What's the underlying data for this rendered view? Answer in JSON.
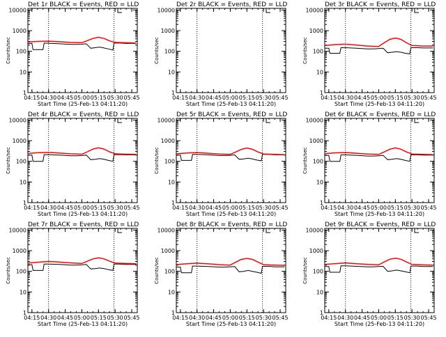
{
  "figure": {
    "xlabel": "Start Time (25-Feb-13 04:11:20)",
    "ylabel": "Counts/sec",
    "colors": {
      "events": "#000000",
      "lld": "#ff0000",
      "axis": "#000000"
    }
  },
  "chart_data": [
    {
      "type": "line",
      "title": "Det 1r BLACK = Events, RED = LLD",
      "xlabel": "Start Time (25-Feb-13 04:11:20)",
      "ylabel": "Counts/sec",
      "x_ticks": [
        "04:15",
        "04:30",
        "04:45",
        "05:00",
        "05:15",
        "05:30",
        "05:45"
      ],
      "y_ticks": [
        "1",
        "10",
        "100",
        "1000",
        "10000"
      ],
      "y_scale": "log",
      "ylim": [
        1,
        12000
      ],
      "xlim": [
        "04:11:20",
        "05:50:00"
      ],
      "dotted_vlines": [
        "04:30",
        "05:29"
      ],
      "series": [
        {
          "role": "events",
          "color": "#000000",
          "x": [
            "04:11",
            "04:15",
            "04:16",
            "04:25",
            "04:26",
            "04:30",
            "04:40",
            "04:50",
            "04:55",
            "05:00",
            "05:04",
            "05:08",
            "05:12",
            "05:16",
            "05:20",
            "05:24",
            "05:28",
            "05:29",
            "05:35",
            "05:40",
            "05:45",
            "05:49"
          ],
          "y": [
            240,
            240,
            120,
            120,
            250,
            245,
            230,
            215,
            215,
            220,
            230,
            140,
            150,
            160,
            145,
            130,
            115,
            250,
            250,
            240,
            240,
            240
          ]
        },
        {
          "role": "lld",
          "color": "#ff0000",
          "x": [
            "04:11",
            "04:20",
            "04:30",
            "04:40",
            "04:50",
            "05:00",
            "05:05",
            "05:10",
            "05:15",
            "05:20",
            "05:25",
            "05:30",
            "05:40",
            "05:49"
          ],
          "y": [
            280,
            300,
            310,
            290,
            270,
            260,
            330,
            420,
            480,
            420,
            320,
            270,
            260,
            250
          ]
        }
      ]
    },
    {
      "type": "line",
      "title": "Det 2r BLACK = Events, RED = LLD",
      "xlabel": "Start Time (25-Feb-13 04:11:20)",
      "ylabel": "Counts/sec",
      "x_ticks": [
        "04:15",
        "04:30",
        "04:45",
        "05:00",
        "05:15",
        "05:30",
        "05:45"
      ],
      "y_ticks": [
        "1",
        "10",
        "100",
        "1000",
        "10000"
      ],
      "y_scale": "log",
      "ylim": [
        1,
        12000
      ],
      "xlim": [
        "04:11:20",
        "05:50:00"
      ],
      "dotted_vlines": [
        "04:30",
        "05:29"
      ],
      "series": []
    },
    {
      "type": "line",
      "title": "Det 3r BLACK = Events, RED = LLD",
      "xlabel": "Start Time (25-Feb-13 04:11:20)",
      "ylabel": "Counts/sec",
      "x_ticks": [
        "04:15",
        "04:30",
        "04:45",
        "05:00",
        "05:15",
        "05:30",
        "05:45"
      ],
      "y_ticks": [
        "1",
        "10",
        "100",
        "1000",
        "10000"
      ],
      "y_scale": "log",
      "ylim": [
        1,
        12000
      ],
      "xlim": [
        "04:11:20",
        "05:50:00"
      ],
      "dotted_vlines": [
        "04:30",
        "05:29"
      ],
      "series": [
        {
          "role": "events",
          "color": "#000000",
          "x": [
            "04:11",
            "04:15",
            "04:16",
            "04:25",
            "04:26",
            "04:30",
            "04:40",
            "04:50",
            "04:55",
            "05:00",
            "05:04",
            "05:08",
            "05:12",
            "05:16",
            "05:20",
            "05:24",
            "05:28",
            "05:29",
            "05:35",
            "05:40",
            "05:45",
            "05:49"
          ],
          "y": [
            140,
            140,
            80,
            80,
            150,
            150,
            140,
            130,
            130,
            135,
            140,
            85,
            90,
            95,
            90,
            80,
            75,
            150,
            150,
            145,
            145,
            145
          ]
        },
        {
          "role": "lld",
          "color": "#ff0000",
          "x": [
            "04:11",
            "04:20",
            "04:30",
            "04:40",
            "04:50",
            "05:00",
            "05:05",
            "05:10",
            "05:15",
            "05:20",
            "05:25",
            "05:30",
            "05:40",
            "05:49"
          ],
          "y": [
            190,
            210,
            220,
            200,
            180,
            170,
            260,
            380,
            440,
            380,
            260,
            190,
            180,
            180
          ]
        }
      ]
    },
    {
      "type": "line",
      "title": "Det 4r BLACK = Events, RED = LLD",
      "xlabel": "Start Time (25-Feb-13 04:11:20)",
      "ylabel": "Counts/sec",
      "x_ticks": [
        "04:15",
        "04:30",
        "04:45",
        "05:00",
        "05:15",
        "05:30",
        "05:45"
      ],
      "y_ticks": [
        "1",
        "10",
        "100",
        "1000",
        "10000"
      ],
      "y_scale": "log",
      "ylim": [
        1,
        12000
      ],
      "xlim": [
        "04:11:20",
        "05:50:00"
      ],
      "dotted_vlines": [
        "04:30",
        "05:29"
      ],
      "series": [
        {
          "role": "events",
          "color": "#000000",
          "x": [
            "04:11",
            "04:15",
            "04:16",
            "04:25",
            "04:26",
            "04:30",
            "04:40",
            "04:50",
            "04:55",
            "05:00",
            "05:04",
            "05:08",
            "05:12",
            "05:16",
            "05:20",
            "05:24",
            "05:28",
            "05:29",
            "05:35",
            "05:40",
            "05:45",
            "05:49"
          ],
          "y": [
            200,
            200,
            100,
            100,
            210,
            210,
            200,
            185,
            185,
            190,
            200,
            120,
            125,
            135,
            125,
            110,
            100,
            210,
            210,
            205,
            205,
            205
          ]
        },
        {
          "role": "lld",
          "color": "#ff0000",
          "x": [
            "04:11",
            "04:20",
            "04:30",
            "04:40",
            "04:50",
            "05:00",
            "05:05",
            "05:10",
            "05:15",
            "05:20",
            "05:25",
            "05:30",
            "05:40",
            "05:49"
          ],
          "y": [
            240,
            260,
            270,
            250,
            230,
            220,
            290,
            390,
            450,
            390,
            290,
            230,
            220,
            215
          ]
        }
      ]
    },
    {
      "type": "line",
      "title": "Det 5r BLACK = Events, RED = LLD",
      "xlabel": "Start Time (25-Feb-13 04:11:20)",
      "ylabel": "Counts/sec",
      "x_ticks": [
        "04:15",
        "04:30",
        "04:45",
        "05:00",
        "05:15",
        "05:30",
        "05:45"
      ],
      "y_ticks": [
        "1",
        "10",
        "100",
        "1000",
        "10000"
      ],
      "y_scale": "log",
      "ylim": [
        1,
        12000
      ],
      "xlim": [
        "04:11:20",
        "05:50:00"
      ],
      "dotted_vlines": [
        "04:30",
        "05:29"
      ],
      "series": [
        {
          "role": "events",
          "color": "#000000",
          "x": [
            "04:11",
            "04:15",
            "04:16",
            "04:25",
            "04:26",
            "04:30",
            "04:40",
            "04:50",
            "04:55",
            "05:00",
            "05:04",
            "05:08",
            "05:12",
            "05:16",
            "05:20",
            "05:24",
            "05:28",
            "05:29",
            "05:35",
            "05:40",
            "05:45",
            "05:49"
          ],
          "y": [
            200,
            200,
            110,
            110,
            215,
            215,
            205,
            190,
            190,
            195,
            205,
            125,
            130,
            140,
            130,
            115,
            105,
            215,
            215,
            205,
            205,
            205
          ]
        },
        {
          "role": "lld",
          "color": "#ff0000",
          "x": [
            "04:11",
            "04:20",
            "04:30",
            "04:40",
            "04:50",
            "05:00",
            "05:05",
            "05:10",
            "05:15",
            "05:20",
            "05:25",
            "05:30",
            "05:40",
            "05:49"
          ],
          "y": [
            230,
            250,
            265,
            245,
            225,
            215,
            285,
            380,
            440,
            380,
            285,
            225,
            215,
            210
          ]
        }
      ]
    },
    {
      "type": "line",
      "title": "Det 6r BLACK = Events, RED = LLD",
      "xlabel": "Start Time (25-Feb-13 04:11:20)",
      "ylabel": "Counts/sec",
      "x_ticks": [
        "04:15",
        "04:30",
        "04:45",
        "05:00",
        "05:15",
        "05:30",
        "05:45"
      ],
      "y_ticks": [
        "1",
        "10",
        "100",
        "1000",
        "10000"
      ],
      "y_scale": "log",
      "ylim": [
        1,
        12000
      ],
      "xlim": [
        "04:11:20",
        "05:50:00"
      ],
      "dotted_vlines": [
        "04:30",
        "05:29"
      ],
      "series": [
        {
          "role": "events",
          "color": "#000000",
          "x": [
            "04:11",
            "04:15",
            "04:16",
            "04:25",
            "04:26",
            "04:30",
            "04:40",
            "04:50",
            "04:55",
            "05:00",
            "05:04",
            "05:08",
            "05:12",
            "05:16",
            "05:20",
            "05:24",
            "05:28",
            "05:29",
            "05:35",
            "05:40",
            "05:45",
            "05:49"
          ],
          "y": [
            195,
            195,
            100,
            100,
            205,
            205,
            195,
            180,
            180,
            185,
            195,
            120,
            125,
            135,
            125,
            110,
            100,
            205,
            205,
            200,
            200,
            200
          ]
        },
        {
          "role": "lld",
          "color": "#ff0000",
          "x": [
            "04:11",
            "04:20",
            "04:30",
            "04:40",
            "04:50",
            "05:00",
            "05:05",
            "05:10",
            "05:15",
            "05:20",
            "05:25",
            "05:30",
            "05:40",
            "05:49"
          ],
          "y": [
            235,
            255,
            265,
            245,
            225,
            215,
            285,
            385,
            445,
            385,
            285,
            225,
            215,
            210
          ]
        }
      ]
    },
    {
      "type": "line",
      "title": "Det 7r BLACK = Events, RED = LLD",
      "xlabel": "Start Time (25-Feb-13 04:11:20)",
      "ylabel": "Counts/sec",
      "x_ticks": [
        "04:15",
        "04:30",
        "04:45",
        "05:00",
        "05:15",
        "05:30",
        "05:45"
      ],
      "y_ticks": [
        "1",
        "10",
        "100",
        "1000",
        "10000"
      ],
      "y_scale": "log",
      "ylim": [
        1,
        12000
      ],
      "xlim": [
        "04:11:20",
        "05:50:00"
      ],
      "dotted_vlines": [
        "04:30",
        "05:29"
      ],
      "series": [
        {
          "role": "events",
          "color": "#000000",
          "x": [
            "04:11",
            "04:15",
            "04:16",
            "04:25",
            "04:26",
            "04:30",
            "04:40",
            "04:50",
            "04:55",
            "05:00",
            "05:04",
            "05:08",
            "05:12",
            "05:16",
            "05:20",
            "05:24",
            "05:28",
            "05:29",
            "05:35",
            "05:40",
            "05:45",
            "05:49"
          ],
          "y": [
            210,
            210,
            110,
            110,
            225,
            225,
            215,
            200,
            200,
            205,
            215,
            130,
            135,
            145,
            135,
            120,
            110,
            225,
            225,
            215,
            215,
            215
          ]
        },
        {
          "role": "lld",
          "color": "#ff0000",
          "x": [
            "04:11",
            "04:20",
            "04:30",
            "04:40",
            "04:50",
            "05:00",
            "05:05",
            "05:10",
            "05:15",
            "05:20",
            "05:25",
            "05:30",
            "05:40",
            "05:49"
          ],
          "y": [
            250,
            275,
            300,
            280,
            255,
            240,
            310,
            400,
            450,
            400,
            310,
            250,
            240,
            235
          ]
        }
      ]
    },
    {
      "type": "line",
      "title": "Det 8r BLACK = Events, RED = LLD",
      "xlabel": "Start Time (25-Feb-13 04:11:20)",
      "ylabel": "Counts/sec",
      "x_ticks": [
        "04:15",
        "04:30",
        "04:45",
        "05:00",
        "05:15",
        "05:30",
        "05:45"
      ],
      "y_ticks": [
        "1",
        "10",
        "100",
        "1000",
        "10000"
      ],
      "y_scale": "log",
      "ylim": [
        1,
        12000
      ],
      "xlim": [
        "04:11:20",
        "05:50:00"
      ],
      "dotted_vlines": [
        "04:30",
        "05:29"
      ],
      "series": [
        {
          "role": "events",
          "color": "#000000",
          "x": [
            "04:11",
            "04:15",
            "04:16",
            "04:25",
            "04:26",
            "04:30",
            "04:40",
            "04:50",
            "04:55",
            "05:00",
            "05:04",
            "05:08",
            "05:12",
            "05:16",
            "05:20",
            "05:24",
            "05:28",
            "05:29",
            "05:35",
            "05:40",
            "05:45",
            "05:49"
          ],
          "y": [
            160,
            160,
            85,
            85,
            180,
            180,
            170,
            160,
            160,
            165,
            170,
            95,
            100,
            110,
            100,
            90,
            80,
            175,
            175,
            165,
            165,
            165
          ]
        },
        {
          "role": "lld",
          "color": "#ff0000",
          "x": [
            "04:11",
            "04:20",
            "04:30",
            "04:40",
            "04:50",
            "05:00",
            "05:05",
            "05:10",
            "05:15",
            "05:20",
            "05:25",
            "05:30",
            "05:40",
            "05:49"
          ],
          "y": [
            210,
            230,
            250,
            230,
            210,
            200,
            280,
            380,
            420,
            380,
            280,
            210,
            200,
            195
          ]
        }
      ]
    },
    {
      "type": "line",
      "title": "Det 9r BLACK = Events, RED = LLD",
      "xlabel": "Start Time (25-Feb-13 04:11:20)",
      "ylabel": "Counts/sec",
      "x_ticks": [
        "04:15",
        "04:30",
        "04:45",
        "05:00",
        "05:15",
        "05:30",
        "05:45"
      ],
      "y_ticks": [
        "1",
        "10",
        "100",
        "1000",
        "10000"
      ],
      "y_scale": "log",
      "ylim": [
        1,
        12000
      ],
      "xlim": [
        "04:11:20",
        "05:50:00"
      ],
      "dotted_vlines": [
        "04:30",
        "05:29"
      ],
      "series": [
        {
          "role": "events",
          "color": "#000000",
          "x": [
            "04:11",
            "04:15",
            "04:16",
            "04:25",
            "04:26",
            "04:30",
            "04:40",
            "04:50",
            "04:55",
            "05:00",
            "05:04",
            "05:08",
            "05:12",
            "05:16",
            "05:20",
            "05:24",
            "05:28",
            "05:29",
            "05:35",
            "05:40",
            "05:45",
            "05:49"
          ],
          "y": [
            170,
            170,
            90,
            90,
            185,
            185,
            175,
            165,
            165,
            170,
            175,
            100,
            105,
            115,
            105,
            95,
            85,
            180,
            180,
            170,
            170,
            170
          ]
        },
        {
          "role": "lld",
          "color": "#ff0000",
          "x": [
            "04:11",
            "04:20",
            "04:30",
            "04:40",
            "04:50",
            "05:00",
            "05:05",
            "05:10",
            "05:15",
            "05:20",
            "05:25",
            "05:30",
            "05:40",
            "05:49"
          ],
          "y": [
            215,
            235,
            255,
            235,
            215,
            205,
            285,
            385,
            430,
            385,
            285,
            215,
            205,
            200
          ]
        }
      ]
    }
  ]
}
